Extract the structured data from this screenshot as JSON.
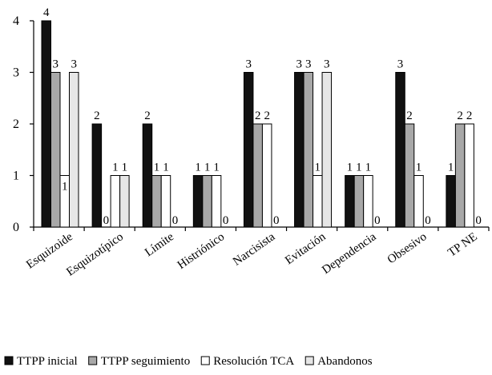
{
  "chart_data": {
    "type": "bar",
    "categories": [
      "Esquizoide",
      "Esquizotípico",
      "Límite",
      "Histriónico",
      "Narcisista",
      "Evitación",
      "Dependencia",
      "Obsesivo",
      "TP NE"
    ],
    "series": [
      {
        "name": "TTPP inicial",
        "values": [
          4,
          2,
          2,
          1,
          3,
          3,
          1,
          3,
          1
        ],
        "color": "#111111"
      },
      {
        "name": "TTPP seguimiento",
        "values": [
          3,
          0,
          1,
          1,
          2,
          3,
          1,
          2,
          2
        ],
        "color": "#a8a8a8"
      },
      {
        "name": "Resolución TCA",
        "values": [
          1,
          1,
          1,
          1,
          2,
          1,
          1,
          1,
          2
        ],
        "color": "#ffffff"
      },
      {
        "name": "Abandonos",
        "values": [
          3,
          1,
          0,
          0,
          0,
          3,
          0,
          0,
          0
        ],
        "color": "#e6e6e6"
      }
    ],
    "data_labels": [
      [
        "4",
        "3",
        "1",
        "3"
      ],
      [
        "2",
        "0",
        "1",
        "1"
      ],
      [
        "2",
        "1",
        "1",
        "0"
      ],
      [
        "1",
        "1",
        "1",
        "0"
      ],
      [
        "3",
        "2",
        "2",
        "0"
      ],
      [
        "3",
        "3",
        "1",
        "3"
      ],
      [
        "1",
        "1",
        "1",
        "0"
      ],
      [
        "3",
        "2",
        "1",
        "0"
      ],
      [
        "1",
        "2",
        "2",
        "0"
      ]
    ],
    "y_ticks": [
      "0",
      "1",
      "2",
      "3",
      "4"
    ],
    "ylim": [
      0,
      4
    ],
    "title": "",
    "xlabel": "",
    "ylabel": "",
    "grid": false,
    "legend_position": "bottom"
  }
}
